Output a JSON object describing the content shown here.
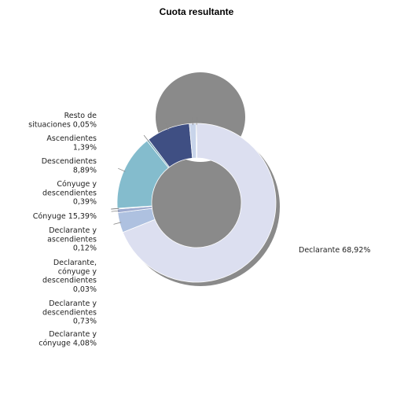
{
  "chart_data": {
    "type": "pie",
    "donut": true,
    "title": "Cuota resultante",
    "slices": [
      {
        "label": "Declarante",
        "value": 68.92,
        "display": "Declarante 68,92%",
        "color": "#dcdff0"
      },
      {
        "label": "Declarante y cónyuge",
        "value": 4.08,
        "display": "Declarante y cónyuge 4,08%",
        "color": "#aec1e0"
      },
      {
        "label": "Declarante y descendientes",
        "value": 0.73,
        "display": "Declarante y descendientes 0,73%",
        "color": "#9daacf"
      },
      {
        "label": "Declarante, cónyuge y descendientes",
        "value": 0.03,
        "display": "Declarante, cónyuge y descendientes 0,03%",
        "color": "#8a96c0"
      },
      {
        "label": "Declarante y ascendientes",
        "value": 0.12,
        "display": "Declarante y ascendientes 0,12%",
        "color": "#6f7fb0"
      },
      {
        "label": "Cónyuge",
        "value": 15.39,
        "display": "Cónyuge 15,39%",
        "color": "#84bccd"
      },
      {
        "label": "Cónyuge y descendientes",
        "value": 0.39,
        "display": "Cónyuge y descendientes 0,39%",
        "color": "#6fa3b4"
      },
      {
        "label": "Descendientes",
        "value": 8.89,
        "display": "Descendientes 8,89%",
        "color": "#3f4f83"
      },
      {
        "label": "Ascendientes",
        "value": 1.39,
        "display": "Ascendientes 1,39%",
        "color": "#c8d4ea"
      },
      {
        "label": "Resto de situaciones",
        "value": 0.05,
        "display": "Resto de situaciones 0,05%",
        "color": "#5d6a98"
      }
    ]
  }
}
